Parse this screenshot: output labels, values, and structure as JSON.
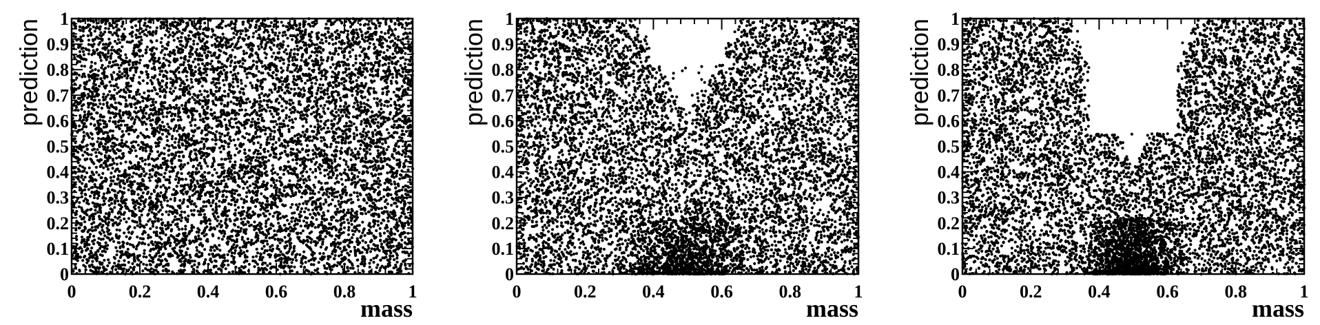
{
  "chart_data": [
    {
      "type": "scatter",
      "xlabel": "mass",
      "ylabel": "prediction",
      "xlim": [
        0,
        1
      ],
      "ylim": [
        0,
        1
      ],
      "xticks": [
        "0",
        "0.2",
        "0.4",
        "0.6",
        "0.8",
        "1"
      ],
      "yticks": [
        "0",
        "0.1",
        "0.2",
        "0.3",
        "0.4",
        "0.5",
        "0.6",
        "0.7",
        "0.8",
        "0.9",
        "1"
      ],
      "marker_color": "#000000",
      "grid": false,
      "distribution": "uniform in mass and prediction, no correlation",
      "series": [
        {
          "n_points": 8000
        }
      ]
    },
    {
      "type": "scatter",
      "xlabel": "mass",
      "ylabel": "prediction",
      "xlim": [
        0,
        1
      ],
      "ylim": [
        0,
        1
      ],
      "xticks": [
        "0",
        "0.2",
        "0.4",
        "0.6",
        "0.8",
        "1"
      ],
      "yticks": [
        "0",
        "0.1",
        "0.2",
        "0.3",
        "0.4",
        "0.5",
        "0.6",
        "0.7",
        "0.8",
        "0.9",
        "1"
      ],
      "marker_color": "#000000",
      "grid": false,
      "distribution": "V-shaped correlation: points sparse near mass 0.5 at high prediction, dense near mass 0.5 at low prediction",
      "series": [
        {
          "n_points": 8000,
          "peak_mass": 0.5,
          "empty_region": {
            "mass": [
              0.4,
              0.6
            ],
            "prediction_above": 0.8
          }
        }
      ]
    },
    {
      "type": "scatter",
      "xlabel": "mass",
      "ylabel": "prediction",
      "xlim": [
        0,
        1
      ],
      "ylim": [
        0,
        1
      ],
      "xticks": [
        "0",
        "0.2",
        "0.4",
        "0.6",
        "0.8",
        "1"
      ],
      "yticks": [
        "0",
        "0.1",
        "0.2",
        "0.3",
        "0.4",
        "0.5",
        "0.6",
        "0.7",
        "0.8",
        "0.9",
        "1"
      ],
      "marker_color": "#000000",
      "grid": false,
      "distribution": "strong V-shaped correlation: empty wedge above mass 0.5, dense cluster near mass 0.5 at low prediction",
      "series": [
        {
          "n_points": 8000,
          "peak_mass": 0.5,
          "empty_region": {
            "mass": [
              0.35,
              0.65
            ],
            "prediction_above": 0.55
          }
        }
      ]
    }
  ]
}
